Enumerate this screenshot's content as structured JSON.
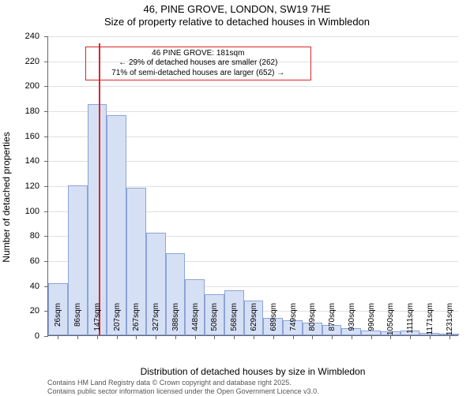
{
  "title_line1": "46, PINE GROVE, LONDON, SW19 7HE",
  "title_line2": "Size of property relative to detached houses in Wimbledon",
  "ylabel": "Number of detached properties",
  "xlabel": "Distribution of detached houses by size in Wimbledon",
  "footer_line1": "Contains HM Land Registry data © Crown copyright and database right 2025.",
  "footer_line2": "Contains public sector information licensed under the Open Government Licence v3.0.",
  "chart": {
    "type": "histogram",
    "ylim": [
      0,
      240
    ],
    "ytick_step": 20,
    "background_color": "#ffffff",
    "grid_color": "#e0e0e0",
    "axis_color": "#666666",
    "bar_fill": "#d6e0f5",
    "bar_border": "#8ca3d9",
    "bar_width_ratio": 1.0,
    "marker": {
      "x_position_ratio": 0.124,
      "height_value": 234,
      "color": "#d92626"
    },
    "annotation": {
      "line1": "46 PINE GROVE: 181sqm",
      "line2": "← 29% of detached houses are smaller (262)",
      "line3": "71% of semi-detached houses are larger (652) →",
      "border_color": "#d92626",
      "left_ratio": 0.09,
      "width_ratio": 0.55,
      "top_value": 232
    },
    "x_labels": [
      "26sqm",
      "86sqm",
      "147sqm",
      "207sqm",
      "267sqm",
      "327sqm",
      "388sqm",
      "448sqm",
      "508sqm",
      "568sqm",
      "629sqm",
      "689sqm",
      "749sqm",
      "809sqm",
      "870sqm",
      "930sqm",
      "990sqm",
      "1050sqm",
      "1111sqm",
      "1171sqm",
      "1231sqm"
    ],
    "values": [
      42,
      120,
      185,
      176,
      118,
      82,
      66,
      45,
      33,
      36,
      28,
      14,
      12,
      10,
      8,
      6,
      4,
      3,
      4,
      2,
      1
    ]
  },
  "fonts": {
    "title_fontsize": 13,
    "axis_label_fontsize": 12,
    "tick_fontsize": 11,
    "xtick_fontsize": 10,
    "annotation_fontsize": 10,
    "footer_fontsize": 9
  }
}
